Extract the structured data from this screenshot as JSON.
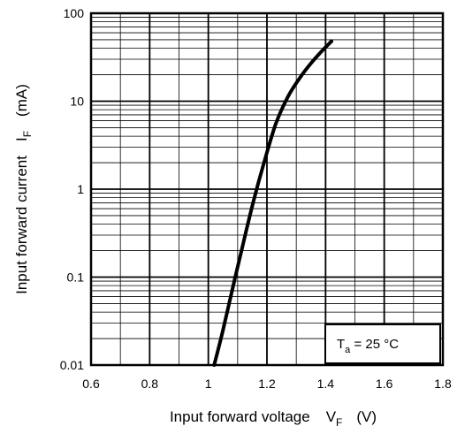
{
  "chart_data": {
    "type": "line",
    "title": "",
    "x_axis": {
      "label_main": "Input forward voltage",
      "symbol": "V",
      "symbol_sub": "F",
      "unit": "(V)",
      "range": [
        0.6,
        1.8
      ],
      "ticks": [
        0.6,
        0.8,
        1,
        1.2,
        1.4,
        1.6,
        1.8
      ],
      "tick_labels": [
        "0.6",
        "0.8",
        "1",
        "1.2",
        "1.4",
        "1.6",
        "1.8"
      ],
      "scale": "linear"
    },
    "y_axis": {
      "label_main": "Input forward current",
      "symbol": "I",
      "symbol_sub": "F",
      "unit": "(mA)",
      "range": [
        0.01,
        100
      ],
      "ticks": [
        0.01,
        0.1,
        1,
        10,
        100
      ],
      "tick_labels": [
        "0.01",
        "0.1",
        "1",
        "10",
        "100"
      ],
      "scale": "log"
    },
    "grid": true,
    "legend": "none",
    "annotation": {
      "prefix": "T",
      "sub": "a",
      "suffix": " = 25 °C",
      "placement": "bottom-right"
    },
    "series": [
      {
        "color": "#000000",
        "points": [
          [
            1.02,
            0.01
          ],
          [
            1.05,
            0.025
          ],
          [
            1.085,
            0.08
          ],
          [
            1.12,
            0.25
          ],
          [
            1.155,
            0.75
          ],
          [
            1.19,
            2.0
          ],
          [
            1.23,
            5.5
          ],
          [
            1.27,
            11
          ],
          [
            1.31,
            18
          ],
          [
            1.35,
            27
          ],
          [
            1.39,
            38
          ],
          [
            1.42,
            48
          ]
        ]
      }
    ]
  }
}
